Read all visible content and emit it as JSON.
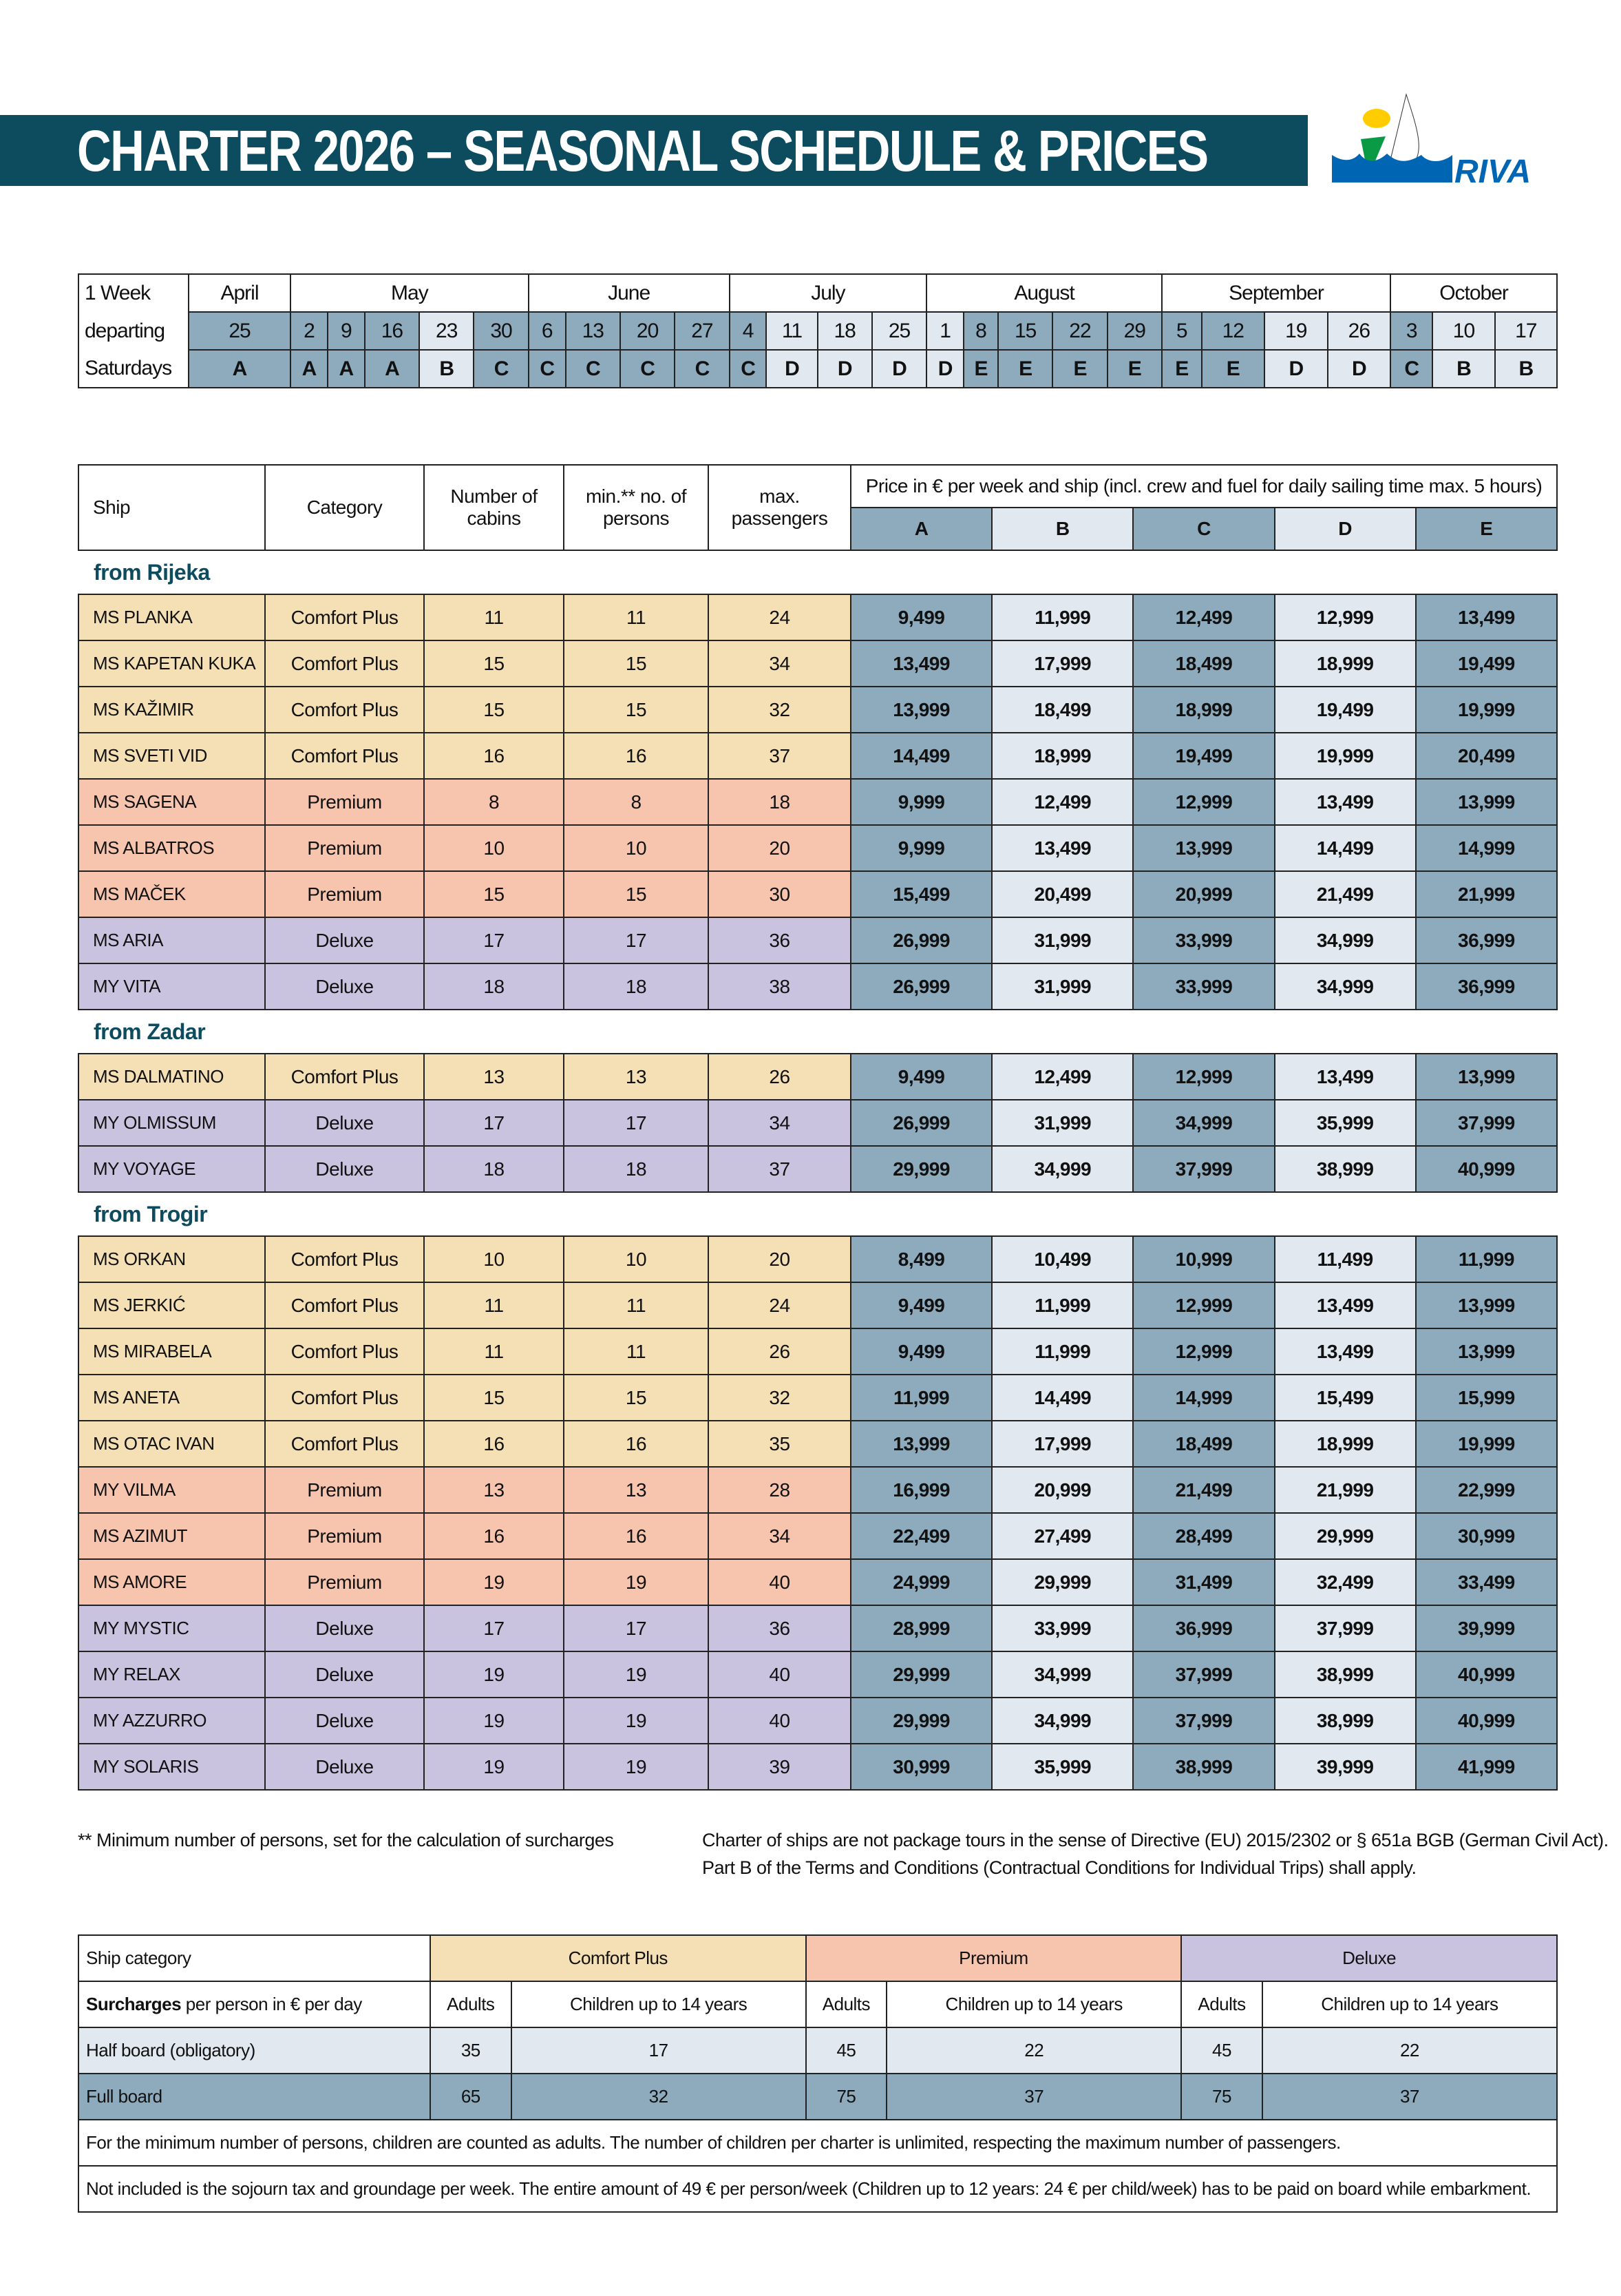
{
  "title": "CHARTER 2026 – SEASONAL SCHEDULE & PRICES",
  "logo": {
    "text": "RIVA",
    "colors": {
      "sun": "#ffcc00",
      "flag": "#0a9a45",
      "water": "#0066b3"
    }
  },
  "colors": {
    "banner": "#0d4b5f",
    "comfort_plus": "#f4e0b4",
    "premium": "#f7c5ae",
    "deluxe": "#c9c3e0",
    "season_dark": "#8eaabd",
    "season_light": "#e1e8ef"
  },
  "schedule": {
    "label_lines": [
      "1 Week",
      "departing",
      "Saturdays"
    ],
    "months": [
      {
        "name": "April",
        "dates": [
          "25"
        ],
        "seasons": [
          "A"
        ]
      },
      {
        "name": "May",
        "dates": [
          "2",
          "9",
          "16",
          "23",
          "30"
        ],
        "seasons": [
          "A",
          "A",
          "A",
          "B",
          "C"
        ]
      },
      {
        "name": "June",
        "dates": [
          "6",
          "13",
          "20",
          "27"
        ],
        "seasons": [
          "C",
          "C",
          "C",
          "C"
        ]
      },
      {
        "name": "July",
        "dates": [
          "4",
          "11",
          "18",
          "25"
        ],
        "seasons": [
          "C",
          "D",
          "D",
          "D"
        ]
      },
      {
        "name": "August",
        "dates": [
          "1",
          "8",
          "15",
          "22",
          "29"
        ],
        "seasons": [
          "D",
          "E",
          "E",
          "E",
          "E"
        ]
      },
      {
        "name": "September",
        "dates": [
          "5",
          "12",
          "19",
          "26"
        ],
        "seasons": [
          "E",
          "E",
          "D",
          "D"
        ]
      },
      {
        "name": "October",
        "dates": [
          "3",
          "10",
          "17"
        ],
        "seasons": [
          "C",
          "B",
          "B"
        ]
      }
    ]
  },
  "prices": {
    "headers": {
      "ship": "Ship",
      "category": "Category",
      "cabins": "Number of cabins",
      "min": "min.** no. of persons",
      "max": "max. passengers",
      "price": "Price in € per week and ship (incl. crew and fuel for daily sailing time max. 5 hours)",
      "seasons": [
        "A",
        "B",
        "C",
        "D",
        "E"
      ]
    },
    "sections": [
      {
        "label": "from Rijeka",
        "ships": [
          {
            "name": "MS PLANKA",
            "category": "Comfort Plus",
            "cabins": "11",
            "min": "11",
            "max": "24",
            "prices": [
              "9,499",
              "11,999",
              "12,499",
              "12,999",
              "13,499"
            ]
          },
          {
            "name": "MS KAPETAN KUKA",
            "category": "Comfort Plus",
            "cabins": "15",
            "min": "15",
            "max": "34",
            "prices": [
              "13,499",
              "17,999",
              "18,499",
              "18,999",
              "19,499"
            ]
          },
          {
            "name": "MS KAŽIMIR",
            "category": "Comfort Plus",
            "cabins": "15",
            "min": "15",
            "max": "32",
            "prices": [
              "13,999",
              "18,499",
              "18,999",
              "19,499",
              "19,999"
            ]
          },
          {
            "name": "MS SVETI VID",
            "category": "Comfort Plus",
            "cabins": "16",
            "min": "16",
            "max": "37",
            "prices": [
              "14,499",
              "18,999",
              "19,499",
              "19,999",
              "20,499"
            ]
          },
          {
            "name": "MS SAGENA",
            "category": "Premium",
            "cabins": "8",
            "min": "8",
            "max": "18",
            "prices": [
              "9,999",
              "12,499",
              "12,999",
              "13,499",
              "13,999"
            ]
          },
          {
            "name": "MS ALBATROS",
            "category": "Premium",
            "cabins": "10",
            "min": "10",
            "max": "20",
            "prices": [
              "9,999",
              "13,499",
              "13,999",
              "14,499",
              "14,999"
            ]
          },
          {
            "name": "MS MAČEK",
            "category": "Premium",
            "cabins": "15",
            "min": "15",
            "max": "30",
            "prices": [
              "15,499",
              "20,499",
              "20,999",
              "21,499",
              "21,999"
            ]
          },
          {
            "name": "MS ARIA",
            "category": "Deluxe",
            "cabins": "17",
            "min": "17",
            "max": "36",
            "prices": [
              "26,999",
              "31,999",
              "33,999",
              "34,999",
              "36,999"
            ]
          },
          {
            "name": "MY VITA",
            "category": "Deluxe",
            "cabins": "18",
            "min": "18",
            "max": "38",
            "prices": [
              "26,999",
              "31,999",
              "33,999",
              "34,999",
              "36,999"
            ]
          }
        ]
      },
      {
        "label": "from Zadar",
        "ships": [
          {
            "name": "MS DALMATINO",
            "category": "Comfort Plus",
            "cabins": "13",
            "min": "13",
            "max": "26",
            "prices": [
              "9,499",
              "12,499",
              "12,999",
              "13,499",
              "13,999"
            ]
          },
          {
            "name": "MY OLMISSUM",
            "category": "Deluxe",
            "cabins": "17",
            "min": "17",
            "max": "34",
            "prices": [
              "26,999",
              "31,999",
              "34,999",
              "35,999",
              "37,999"
            ]
          },
          {
            "name": "MY VOYAGE",
            "category": "Deluxe",
            "cabins": "18",
            "min": "18",
            "max": "37",
            "prices": [
              "29,999",
              "34,999",
              "37,999",
              "38,999",
              "40,999"
            ]
          }
        ]
      },
      {
        "label": "from Trogir",
        "ships": [
          {
            "name": "MS ORKAN",
            "category": "Comfort Plus",
            "cabins": "10",
            "min": "10",
            "max": "20",
            "prices": [
              "8,499",
              "10,499",
              "10,999",
              "11,499",
              "11,999"
            ]
          },
          {
            "name": "MS JERKIĆ",
            "category": "Comfort Plus",
            "cabins": "11",
            "min": "11",
            "max": "24",
            "prices": [
              "9,499",
              "11,999",
              "12,999",
              "13,499",
              "13,999"
            ]
          },
          {
            "name": "MS MIRABELA",
            "category": "Comfort Plus",
            "cabins": "11",
            "min": "11",
            "max": "26",
            "prices": [
              "9,499",
              "11,999",
              "12,999",
              "13,499",
              "13,999"
            ]
          },
          {
            "name": "MS ANETA",
            "category": "Comfort Plus",
            "cabins": "15",
            "min": "15",
            "max": "32",
            "prices": [
              "11,999",
              "14,499",
              "14,999",
              "15,499",
              "15,999"
            ]
          },
          {
            "name": "MS OTAC IVAN",
            "category": "Comfort Plus",
            "cabins": "16",
            "min": "16",
            "max": "35",
            "prices": [
              "13,999",
              "17,999",
              "18,499",
              "18,999",
              "19,999"
            ]
          },
          {
            "name": "MY VILMA",
            "category": "Premium",
            "cabins": "13",
            "min": "13",
            "max": "28",
            "prices": [
              "16,999",
              "20,999",
              "21,499",
              "21,999",
              "22,999"
            ]
          },
          {
            "name": "MS AZIMUT",
            "category": "Premium",
            "cabins": "16",
            "min": "16",
            "max": "34",
            "prices": [
              "22,499",
              "27,499",
              "28,499",
              "29,999",
              "30,999"
            ]
          },
          {
            "name": "MS AMORE",
            "category": "Premium",
            "cabins": "19",
            "min": "19",
            "max": "40",
            "prices": [
              "24,999",
              "29,999",
              "31,499",
              "32,499",
              "33,499"
            ]
          },
          {
            "name": "MY MYSTIC",
            "category": "Deluxe",
            "cabins": "17",
            "min": "17",
            "max": "36",
            "prices": [
              "28,999",
              "33,999",
              "36,999",
              "37,999",
              "39,999"
            ]
          },
          {
            "name": "MY RELAX",
            "category": "Deluxe",
            "cabins": "19",
            "min": "19",
            "max": "40",
            "prices": [
              "29,999",
              "34,999",
              "37,999",
              "38,999",
              "40,999"
            ]
          },
          {
            "name": "MY AZZURRO",
            "category": "Deluxe",
            "cabins": "19",
            "min": "19",
            "max": "40",
            "prices": [
              "29,999",
              "34,999",
              "37,999",
              "38,999",
              "40,999"
            ]
          },
          {
            "name": "MY SOLARIS",
            "category": "Deluxe",
            "cabins": "19",
            "min": "19",
            "max": "39",
            "prices": [
              "30,999",
              "35,999",
              "38,999",
              "39,999",
              "41,999"
            ]
          }
        ]
      }
    ]
  },
  "notes": {
    "min_persons": "** Minimum number of persons, set for the calculation of surcharges",
    "legal_line1": "Charter of ships are not package tours in the sense of Directive (EU) 2015/2302 or § 651a BGB (German Civil Act).",
    "legal_line2": "Part B of the Terms and Conditions (Contractual Conditions for Individual Trips) shall apply."
  },
  "surcharges": {
    "category_label": "Ship category",
    "categories": [
      "Comfort Plus",
      "Premium",
      "Deluxe"
    ],
    "surcharges_bold": "Surcharges",
    "surcharges_rest": " per person in € per day",
    "adults": "Adults",
    "children": "Children up to 14 years",
    "rows": [
      {
        "label": "Half board (obligatory)",
        "values": [
          "35",
          "17",
          "45",
          "22",
          "45",
          "22"
        ]
      },
      {
        "label": "Full board",
        "values": [
          "65",
          "32",
          "75",
          "37",
          "75",
          "37"
        ]
      }
    ],
    "note1": "For the minimum number of persons, children are counted as adults. The number of children per charter is unlimited, respecting the maximum number of passengers.",
    "note2": "Not included is the sojourn tax and groundage per week. The entire amount of 49 € per person/week (Children up to 12 years: 24 € per child/week) has to be paid on board while embarkment."
  }
}
